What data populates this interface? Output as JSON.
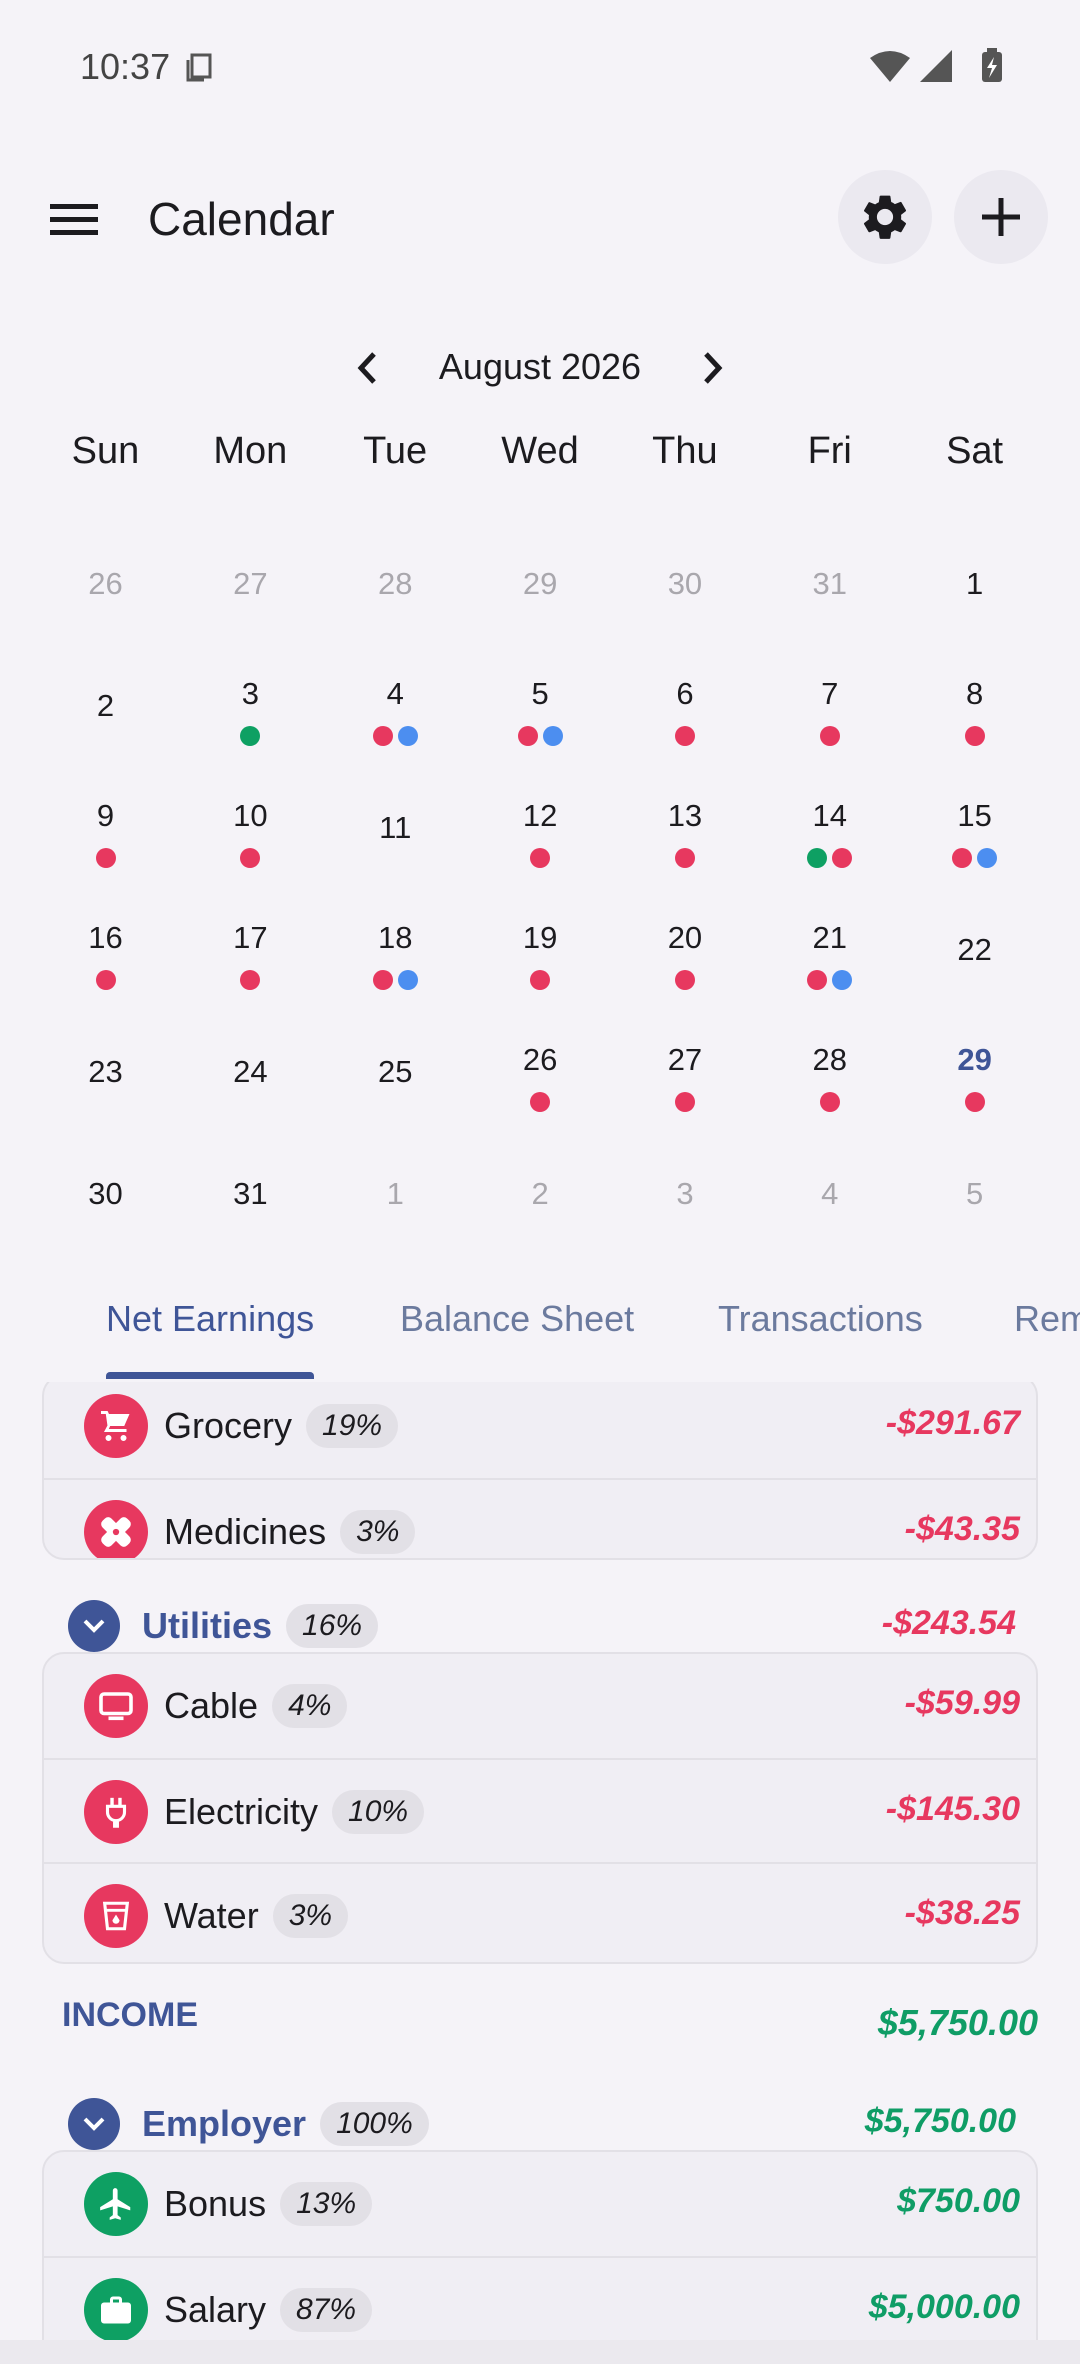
{
  "status_bar": {
    "time": "10:37"
  },
  "app_bar": {
    "title": "Calendar",
    "menu_icon": "menu-icon",
    "settings_icon": "gear-icon",
    "add_icon": "plus-icon"
  },
  "month_nav": {
    "label": "August 2026"
  },
  "weekdays": [
    "Sun",
    "Mon",
    "Tue",
    "Wed",
    "Thu",
    "Fri",
    "Sat"
  ],
  "dot_colors": {
    "red": "#e7385f",
    "blue": "#4c8ef0",
    "green": "#0ea063"
  },
  "calendar": [
    [
      {
        "n": "26",
        "m": true,
        "d": []
      },
      {
        "n": "27",
        "m": true,
        "d": []
      },
      {
        "n": "28",
        "m": true,
        "d": []
      },
      {
        "n": "29",
        "m": true,
        "d": []
      },
      {
        "n": "30",
        "m": true,
        "d": []
      },
      {
        "n": "31",
        "m": true,
        "d": []
      },
      {
        "n": "1",
        "m": false,
        "d": []
      }
    ],
    [
      {
        "n": "2",
        "m": false,
        "d": []
      },
      {
        "n": "3",
        "m": false,
        "d": [
          "green"
        ]
      },
      {
        "n": "4",
        "m": false,
        "d": [
          "red",
          "blue"
        ]
      },
      {
        "n": "5",
        "m": false,
        "d": [
          "red",
          "blue"
        ]
      },
      {
        "n": "6",
        "m": false,
        "d": [
          "red"
        ]
      },
      {
        "n": "7",
        "m": false,
        "d": [
          "red"
        ]
      },
      {
        "n": "8",
        "m": false,
        "d": [
          "red"
        ]
      }
    ],
    [
      {
        "n": "9",
        "m": false,
        "d": [
          "red"
        ]
      },
      {
        "n": "10",
        "m": false,
        "d": [
          "red"
        ]
      },
      {
        "n": "11",
        "m": false,
        "d": []
      },
      {
        "n": "12",
        "m": false,
        "d": [
          "red"
        ]
      },
      {
        "n": "13",
        "m": false,
        "d": [
          "red"
        ]
      },
      {
        "n": "14",
        "m": false,
        "d": [
          "green",
          "red"
        ]
      },
      {
        "n": "15",
        "m": false,
        "d": [
          "red",
          "blue"
        ]
      }
    ],
    [
      {
        "n": "16",
        "m": false,
        "d": [
          "red"
        ]
      },
      {
        "n": "17",
        "m": false,
        "d": [
          "red"
        ]
      },
      {
        "n": "18",
        "m": false,
        "d": [
          "red",
          "blue"
        ]
      },
      {
        "n": "19",
        "m": false,
        "d": [
          "red"
        ]
      },
      {
        "n": "20",
        "m": false,
        "d": [
          "red"
        ]
      },
      {
        "n": "21",
        "m": false,
        "d": [
          "red",
          "blue"
        ]
      },
      {
        "n": "22",
        "m": false,
        "d": []
      }
    ],
    [
      {
        "n": "23",
        "m": false,
        "d": []
      },
      {
        "n": "24",
        "m": false,
        "d": []
      },
      {
        "n": "25",
        "m": false,
        "d": []
      },
      {
        "n": "26",
        "m": false,
        "d": [
          "red"
        ]
      },
      {
        "n": "27",
        "m": false,
        "d": [
          "red"
        ]
      },
      {
        "n": "28",
        "m": false,
        "d": [
          "red"
        ]
      },
      {
        "n": "29",
        "m": false,
        "d": [
          "red"
        ],
        "today": true
      }
    ],
    [
      {
        "n": "30",
        "m": false,
        "d": []
      },
      {
        "n": "31",
        "m": false,
        "d": []
      },
      {
        "n": "1",
        "m": true,
        "d": []
      },
      {
        "n": "2",
        "m": true,
        "d": []
      },
      {
        "n": "3",
        "m": true,
        "d": []
      },
      {
        "n": "4",
        "m": true,
        "d": []
      },
      {
        "n": "5",
        "m": true,
        "d": []
      }
    ]
  ],
  "tabs": {
    "net_earnings": "Net Earnings",
    "balance_sheet": "Balance Sheet",
    "transactions": "Transactions",
    "reminders": "Rem"
  },
  "expenses_top": {
    "grocery": {
      "label": "Grocery",
      "pct": "19%",
      "amount": "-$291.67"
    },
    "medicines": {
      "label": "Medicines",
      "pct": "3%",
      "amount": "-$43.35"
    }
  },
  "utilities": {
    "label": "Utilities",
    "pct": "16%",
    "amount": "-$243.54",
    "cable": {
      "label": "Cable",
      "pct": "4%",
      "amount": "-$59.99"
    },
    "electricity": {
      "label": "Electricity",
      "pct": "10%",
      "amount": "-$145.30"
    },
    "water": {
      "label": "Water",
      "pct": "3%",
      "amount": "-$38.25"
    }
  },
  "income": {
    "label": "INCOME",
    "amount": "$5,750.00",
    "employer": {
      "label": "Employer",
      "pct": "100%",
      "amount": "$5,750.00"
    },
    "bonus": {
      "label": "Bonus",
      "pct": "13%",
      "amount": "$750.00"
    },
    "salary": {
      "label": "Salary",
      "pct": "87%",
      "amount": "$5,000.00"
    }
  },
  "colors": {
    "accent": "#3f5597",
    "expense": "#e7385f",
    "income": "#0f9d66"
  }
}
